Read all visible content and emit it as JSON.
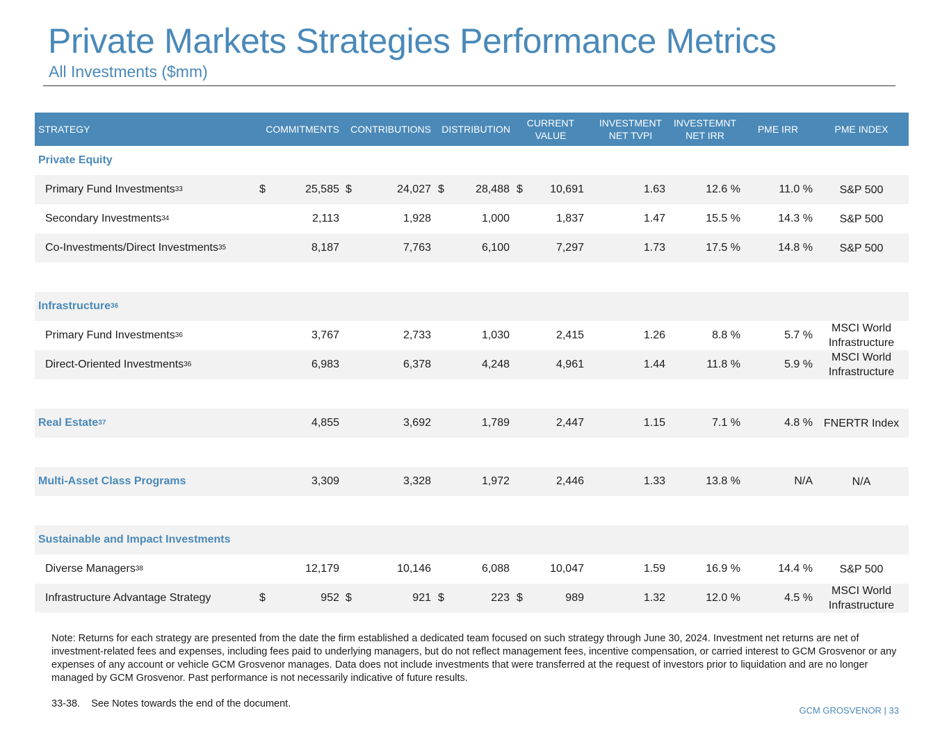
{
  "title": "Private Markets Strategies Performance Metrics",
  "subtitle": "All Investments ($mm)",
  "headers": {
    "strategy": "STRATEGY",
    "commitments": "COMMITMENTS",
    "contributions": "CONTRIBUTIONS",
    "distribution": "DISTRIBUTION",
    "current_value_1": "CURRENT",
    "current_value_2": "VALUE",
    "tvpi_1": "INVESTMENT",
    "tvpi_2": "NET TVPI",
    "irr_1": "INVESTEMNT",
    "irr_2": "NET IRR",
    "pme_irr": "PME IRR",
    "pme_index": "PME INDEX"
  },
  "currency_symbol": "$",
  "sections": {
    "pe": {
      "label": "Private Equity"
    },
    "infra": {
      "label": "Infrastructure",
      "sup": "36"
    },
    "re": {
      "label": "Real Estate",
      "sup": "37",
      "commitments": "4,855",
      "contributions": "3,692",
      "distribution": "1,789",
      "current_value": "2,447",
      "tvpi": "1.15",
      "irr": "7.1 %",
      "pme_irr": "4.8 %",
      "pme_index": "FNERTR Index"
    },
    "mac": {
      "label": "Multi-Asset Class Programs",
      "commitments": "3,309",
      "contributions": "3,328",
      "distribution": "1,972",
      "current_value": "2,446",
      "tvpi": "1.33",
      "irr": "13.8 %",
      "pme_irr": "N/A",
      "pme_index": "N/A"
    },
    "sii": {
      "label": "Sustainable and Impact Investments"
    }
  },
  "rows": {
    "pe_primary": {
      "name": "Primary Fund Investments",
      "sup": "33",
      "commitments": "25,585",
      "contributions": "24,027",
      "distribution": "28,488",
      "current_value": "10,691",
      "tvpi": "1.63",
      "irr": "12.6 %",
      "pme_irr": "11.0 %",
      "pme_index": "S&P 500"
    },
    "pe_secondary": {
      "name": "Secondary Investments",
      "sup": "34",
      "commitments": "2,113",
      "contributions": "1,928",
      "distribution": "1,000",
      "current_value": "1,837",
      "tvpi": "1.47",
      "irr": "15.5 %",
      "pme_irr": "14.3 %",
      "pme_index": "S&P 500"
    },
    "pe_coinv": {
      "name": "Co-Investments/Direct Investments",
      "sup": "35",
      "commitments": "8,187",
      "contributions": "7,763",
      "distribution": "6,100",
      "current_value": "7,297",
      "tvpi": "1.73",
      "irr": "17.5 %",
      "pme_irr": "14.8 %",
      "pme_index": "S&P 500"
    },
    "infra_primary": {
      "name": "Primary Fund Investments",
      "sup": "36",
      "commitments": "3,767",
      "contributions": "2,733",
      "distribution": "1,030",
      "current_value": "2,415",
      "tvpi": "1.26",
      "irr": "8.8 %",
      "pme_irr": "5.7 %",
      "pme_index_1": "MSCI World",
      "pme_index_2": "Infrastructure"
    },
    "infra_direct": {
      "name": "Direct-Oriented Investments",
      "sup": "36",
      "commitments": "6,983",
      "contributions": "6,378",
      "distribution": "4,248",
      "current_value": "4,961",
      "tvpi": "1.44",
      "irr": "11.8 %",
      "pme_irr": "5.9 %",
      "pme_index_1": "MSCI World",
      "pme_index_2": "Infrastructure"
    },
    "sii_diverse": {
      "name": "Diverse Managers",
      "sup": "38",
      "commitments": "12,179",
      "contributions": "10,146",
      "distribution": "6,088",
      "current_value": "10,047",
      "tvpi": "1.59",
      "irr": "16.9 %",
      "pme_irr": "14.4 %",
      "pme_index": "S&P 500"
    },
    "sii_infra_adv": {
      "name": "Infrastructure Advantage Strategy",
      "commitments": "952",
      "contributions": "921",
      "distribution": "223",
      "current_value": "989",
      "tvpi": "1.32",
      "irr": "12.0 %",
      "pme_irr": "4.5 %",
      "pme_index_1": "MSCI World",
      "pme_index_2": "Infrastructure"
    }
  },
  "note": "Note: Returns for each strategy are presented from the date the firm established a dedicated team focused on such strategy through June 30, 2024. Investment net returns are net of investment-related fees and expenses, including fees paid to underlying managers, but do not reflect management fees, incentive compensation, or carried interest to GCM Grosvenor or any expenses of any account or vehicle GCM Grosvenor manages. Data does not include investments that were transferred at the request of investors prior to liquidation and are no longer managed by GCM Grosvenor. Past performance is not necessarily indicative of future results.",
  "footnote_ref": "33-38.",
  "footnote_text": "See Notes towards the end of the document.",
  "brand": "GCM GROSVENOR | 33"
}
